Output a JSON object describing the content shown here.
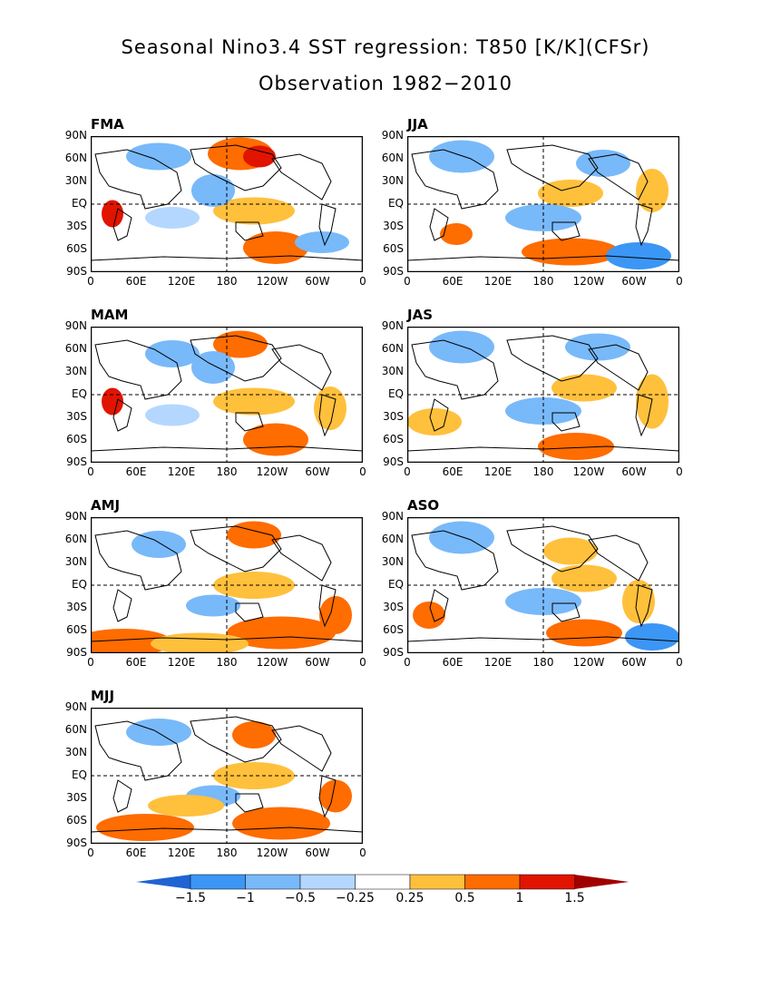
{
  "figure": {
    "title_line1": "Seasonal Nino3.4 SST regression: T850 [K/K](CFSr)",
    "title_line2": "Observation 1982−2010"
  },
  "axes": {
    "lat_ticks": [
      "90N",
      "60N",
      "30N",
      "EQ",
      "30S",
      "60S",
      "90S"
    ],
    "lon_ticks": [
      "0",
      "60E",
      "120E",
      "180",
      "120W",
      "60W",
      "0"
    ]
  },
  "panels": [
    {
      "label": "FMA"
    },
    {
      "label": "JJA"
    },
    {
      "label": "MAM"
    },
    {
      "label": "JAS"
    },
    {
      "label": "AMJ"
    },
    {
      "label": "ASO"
    },
    {
      "label": "MJJ"
    }
  ],
  "colorbar": {
    "labels": [
      "−1.5",
      "−1",
      "−0.5",
      "−0.25",
      "0.25",
      "0.5",
      "1",
      "1.5"
    ],
    "colors": [
      "#1e6ee6",
      "#3c96f5",
      "#78b9fa",
      "#b4d7ff",
      "#ffffff",
      "#ffc03c",
      "#ff6c00",
      "#e11400",
      "#a00000"
    ],
    "end_colors": [
      "#1e64d2",
      "#a00000"
    ]
  },
  "chart_data": {
    "type": "heatmap",
    "variable": "T850 regression on Nino3.4 SST",
    "units": "K/K",
    "levels": [
      -1.5,
      -1,
      -0.5,
      -0.25,
      0.25,
      0.5,
      1,
      1.5
    ],
    "seasons": [
      "FMA",
      "JJA",
      "MAM",
      "JAS",
      "AMJ",
      "ASO",
      "MJJ"
    ],
    "xlim": [
      "0",
      "0"
    ],
    "ylim": [
      "90S",
      "90N"
    ]
  }
}
